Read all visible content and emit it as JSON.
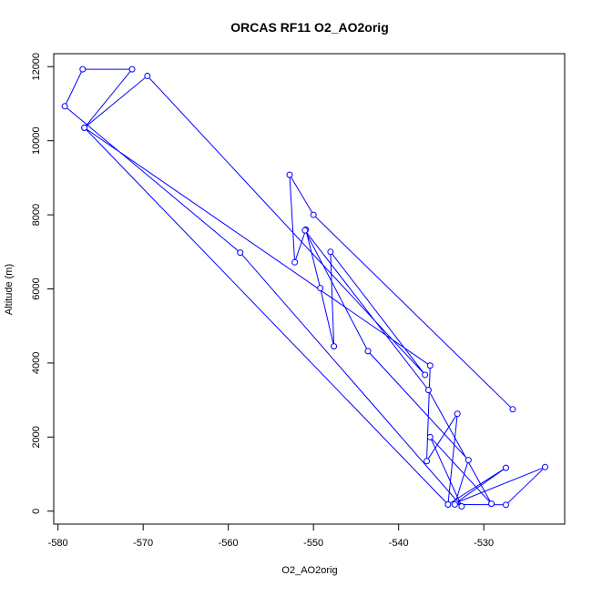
{
  "chart_data": {
    "type": "line",
    "title": "ORCAS RF11 O2_AO2orig",
    "xlabel": "O2_AO2orig",
    "ylabel": "Altitude (m)",
    "xlim": [
      -580.5,
      -520.5
    ],
    "ylim": [
      -350,
      12350
    ],
    "x_ticks": [
      -580,
      -570,
      -560,
      -550,
      -540,
      -530
    ],
    "x_tick_labels": [
      "-580",
      "-570",
      "-560",
      "-550",
      "-540",
      "-530"
    ],
    "y_ticks": [
      0,
      2000,
      4000,
      6000,
      8000,
      10000,
      12000
    ],
    "y_tick_labels": [
      "0",
      "2000",
      "4000",
      "6000",
      "8000",
      "10000",
      "12000"
    ],
    "grid": false,
    "marker": "open-circle",
    "series": [
      {
        "color": "#0000ff",
        "points": [
          {
            "x": -526.6,
            "y": 2750
          },
          {
            "x": -550.0,
            "y": 8000
          },
          {
            "x": -552.8,
            "y": 9080
          },
          {
            "x": -552.2,
            "y": 6720
          },
          {
            "x": -550.9,
            "y": 7600
          },
          {
            "x": -549.2,
            "y": 6020
          },
          {
            "x": -547.6,
            "y": 4450
          },
          {
            "x": -548.0,
            "y": 7000
          },
          {
            "x": -536.9,
            "y": 3680
          },
          {
            "x": -569.5,
            "y": 11750
          },
          {
            "x": -576.9,
            "y": 10350
          },
          {
            "x": -536.3,
            "y": 3930
          },
          {
            "x": -536.7,
            "y": 1350
          },
          {
            "x": -533.1,
            "y": 2630
          },
          {
            "x": -534.2,
            "y": 180
          },
          {
            "x": -527.4,
            "y": 1170
          },
          {
            "x": -533.3,
            "y": 220
          },
          {
            "x": -522.8,
            "y": 1190
          },
          {
            "x": -527.4,
            "y": 170
          },
          {
            "x": -533.4,
            "y": 180
          },
          {
            "x": -531.8,
            "y": 1380
          },
          {
            "x": -543.6,
            "y": 4320
          },
          {
            "x": -551.0,
            "y": 7580
          },
          {
            "x": -536.5,
            "y": 3270
          },
          {
            "x": -529.1,
            "y": 200
          },
          {
            "x": -536.3,
            "y": 2000
          },
          {
            "x": -532.6,
            "y": 130
          },
          {
            "x": -558.6,
            "y": 6980
          },
          {
            "x": -579.2,
            "y": 10930
          },
          {
            "x": -577.1,
            "y": 11930
          },
          {
            "x": -571.3,
            "y": 11930
          },
          {
            "x": -576.9,
            "y": 10350
          },
          {
            "x": -534.2,
            "y": 180
          }
        ]
      }
    ]
  }
}
